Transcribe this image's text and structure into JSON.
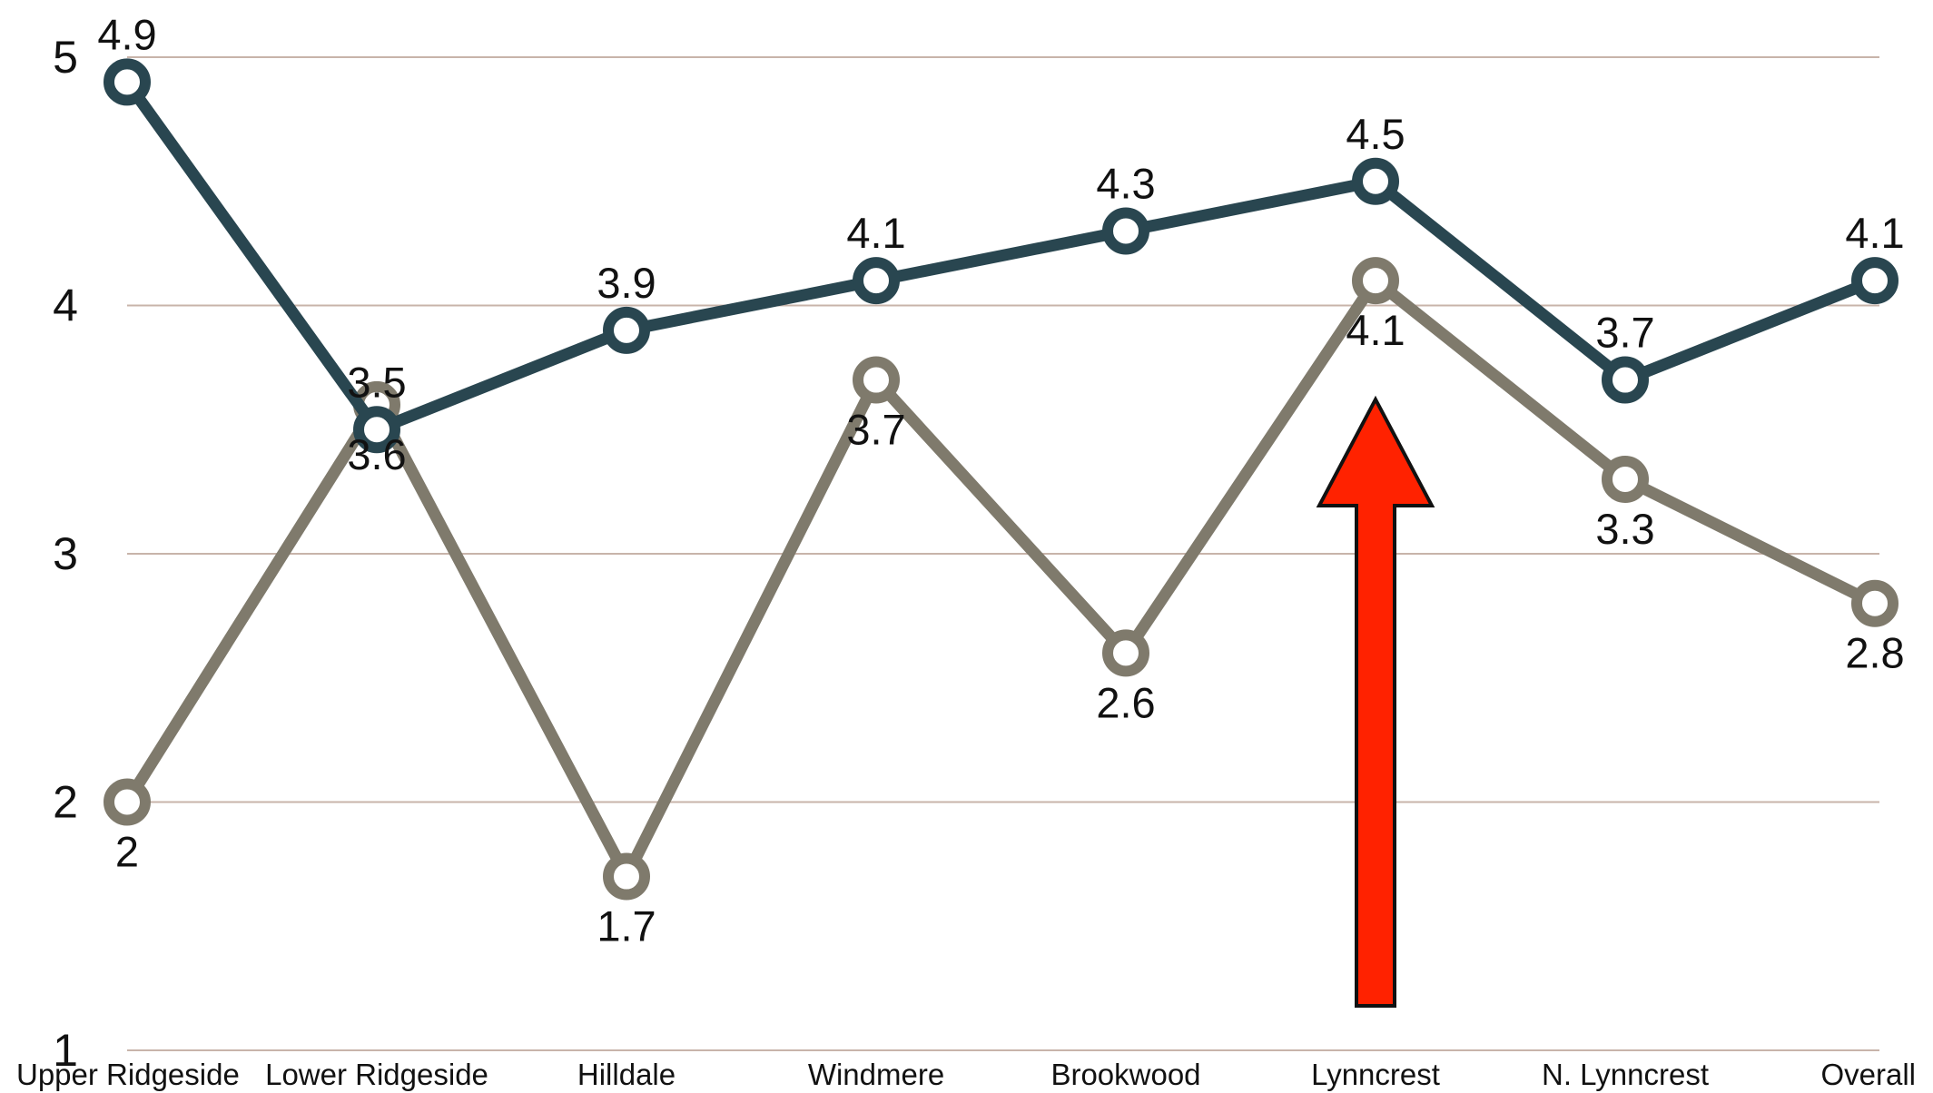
{
  "chart_data": {
    "type": "line",
    "title": "",
    "xlabel": "",
    "ylabel": "",
    "categories": [
      "Upper Ridgeside",
      "Lower Ridgeside",
      "Hilldale",
      "Windmere",
      "Brookwood",
      "Lynncrest",
      "N. Lynncrest",
      "Overall"
    ],
    "ylim": [
      1,
      5
    ],
    "yticks": [
      "1",
      "2",
      "3",
      "4",
      "5"
    ],
    "grid": true,
    "legend": "none",
    "series": [
      {
        "values": [
          4.9,
          3.5,
          3.9,
          4.1,
          4.3,
          4.5,
          3.7,
          4.1
        ],
        "labels": [
          "4.9",
          "3.5",
          "3.9",
          "4.1",
          "4.3",
          "4.5",
          "3.7",
          "4.1"
        ],
        "label_position": "above",
        "color": "#294650"
      },
      {
        "values": [
          2.0,
          3.6,
          1.7,
          3.7,
          2.6,
          4.1,
          3.3,
          2.8
        ],
        "labels": [
          "2",
          "3.6",
          "1.7",
          "3.7",
          "2.6",
          "4.1",
          "3.3",
          "2.8"
        ],
        "label_position": "below",
        "color": "#7f7a6c"
      }
    ],
    "annotations": [
      {
        "type": "arrow",
        "direction": "up",
        "category": "Lynncrest",
        "color": "#ff2200"
      }
    ],
    "colors": {
      "grid": "#c8b4aa",
      "marker_fill": "#ffffff"
    }
  }
}
